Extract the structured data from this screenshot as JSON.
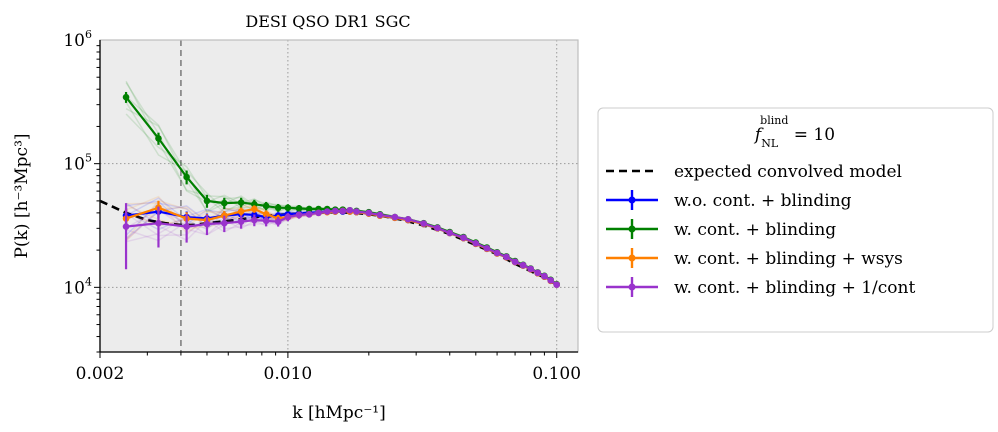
{
  "chart_data": {
    "type": "line",
    "title": "DESI QSO DR1 SGC",
    "xlabel": "k [hMpc⁻¹]",
    "ylabel": "P(k) [h⁻³Mpc³]",
    "xscale": "log",
    "yscale": "log",
    "xlim": [
      0.002,
      0.12
    ],
    "ylim": [
      3000,
      1000000
    ],
    "xticks": [
      0.002,
      0.01,
      0.1
    ],
    "xtick_labels": [
      "0.002",
      "0.010",
      "0.100"
    ],
    "yticks": [
      10000,
      100000,
      1000000
    ],
    "ytick_labels": [
      {
        "base": "10",
        "exp": "4"
      },
      {
        "base": "10",
        "exp": "5"
      },
      {
        "base": "10",
        "exp": "6"
      }
    ],
    "grid": true,
    "vline_x": 0.004,
    "legend": {
      "placement": "outside-right",
      "title_base": "f",
      "title_sub": "NL",
      "title_sup": "blind",
      "title_rhs": " = 10"
    },
    "model": {
      "name": "expected convolved model",
      "color": "#000000",
      "x": [
        0.002,
        0.0025,
        0.003,
        0.0035,
        0.004,
        0.0045,
        0.005,
        0.006,
        0.007,
        0.008,
        0.01,
        0.012,
        0.015,
        0.018,
        0.022,
        0.027,
        0.033,
        0.04,
        0.05,
        0.06,
        0.07,
        0.08,
        0.09,
        0.1
      ],
      "y": [
        50000,
        40000,
        35000,
        33000,
        32000,
        32000,
        33000,
        34500,
        36000,
        37500,
        39000,
        40000,
        40500,
        40000,
        38000,
        35000,
        31000,
        27000,
        22000,
        18500,
        15500,
        13500,
        12000,
        10500
      ]
    },
    "x": [
      0.0025,
      0.0033,
      0.0042,
      0.005,
      0.0058,
      0.0067,
      0.0075,
      0.0083,
      0.0092,
      0.01,
      0.011,
      0.012,
      0.013,
      0.014,
      0.015,
      0.016,
      0.017,
      0.018,
      0.02,
      0.022,
      0.025,
      0.028,
      0.032,
      0.036,
      0.04,
      0.045,
      0.05,
      0.055,
      0.06,
      0.065,
      0.07,
      0.075,
      0.08,
      0.085,
      0.09,
      0.095,
      0.1
    ],
    "series": [
      {
        "name": "w.o. cont. + blinding",
        "color": "#0000ff",
        "y": [
          38000,
          41000,
          37000,
          36000,
          38000,
          39000,
          38500,
          37000,
          38000,
          39000,
          39500,
          40000,
          40500,
          41000,
          41000,
          41000,
          41000,
          40500,
          39500,
          38000,
          36500,
          35000,
          32500,
          30000,
          27500,
          25000,
          22500,
          20500,
          18800,
          17500,
          16000,
          15000,
          14000,
          13000,
          12200,
          11300,
          10500
        ],
        "err": [
          6000,
          5000,
          4000,
          3500,
          3000,
          3000,
          2800,
          2600,
          2500,
          2400,
          2300,
          2200,
          2100,
          2000,
          2000,
          1900,
          1800,
          1700,
          1500,
          1300,
          1200,
          1000,
          900,
          800,
          700,
          650,
          600,
          550,
          500,
          450,
          400,
          380,
          350,
          330,
          300,
          280,
          250
        ]
      },
      {
        "name": "w. cont. + blinding",
        "color": "#008000",
        "y": [
          345000,
          160000,
          78000,
          50000,
          48000,
          48500,
          47000,
          45500,
          44000,
          44000,
          43500,
          43000,
          43000,
          43000,
          42500,
          42500,
          42000,
          41500,
          40500,
          39000,
          37000,
          35500,
          33000,
          30500,
          28000,
          25500,
          23000,
          21000,
          19200,
          17800,
          16300,
          15200,
          14200,
          13200,
          12400,
          11500,
          10600
        ],
        "err": [
          35000,
          18000,
          10000,
          6000,
          5000,
          4500,
          4000,
          3500,
          3200,
          3000,
          2800,
          2600,
          2500,
          2400,
          2300,
          2200,
          2100,
          2000,
          1800,
          1600,
          1400,
          1200,
          1000,
          900,
          800,
          700,
          650,
          600,
          550,
          500,
          450,
          400,
          380,
          350,
          330,
          300,
          280
        ]
      },
      {
        "name": "w. cont. + blinding + wsys",
        "color": "#ff8000",
        "y": [
          36000,
          44000,
          36000,
          35000,
          38000,
          41000,
          43000,
          39000,
          36000,
          37000,
          38500,
          39000,
          40000,
          40500,
          41000,
          41500,
          41000,
          40500,
          39500,
          38000,
          36500,
          35000,
          32500,
          30000,
          27500,
          25000,
          22500,
          20500,
          18800,
          17500,
          16000,
          15000,
          14000,
          13000,
          12200,
          11300,
          10500
        ],
        "err": [
          7000,
          6000,
          4500,
          4000,
          3500,
          3200,
          3000,
          2800,
          2600,
          2500,
          2400,
          2300,
          2200,
          2100,
          2000,
          1900,
          1800,
          1700,
          1500,
          1300,
          1200,
          1000,
          900,
          800,
          700,
          650,
          600,
          550,
          500,
          450,
          400,
          380,
          350,
          330,
          300,
          280,
          250
        ]
      },
      {
        "name": "w. cont. + blinding + 1/cont",
        "color": "#9933cc",
        "y": [
          31000,
          33000,
          31000,
          32500,
          33000,
          34000,
          35000,
          34500,
          34000,
          37000,
          38500,
          39000,
          40000,
          41000,
          41500,
          41500,
          42000,
          41000,
          40000,
          38500,
          37000,
          35500,
          32800,
          30200,
          27600,
          25200,
          22700,
          20700,
          19000,
          17600,
          16100,
          15100,
          14100,
          13100,
          12300,
          11400,
          10500
        ],
        "err": [
          17000,
          12000,
          8000,
          6000,
          5000,
          4200,
          3800,
          3400,
          3000,
          2800,
          2600,
          2400,
          2300,
          2200,
          2100,
          2000,
          1900,
          1800,
          1600,
          1400,
          1200,
          1000,
          900,
          800,
          700,
          650,
          600,
          550,
          500,
          450,
          400,
          380,
          350,
          330,
          300,
          280,
          250
        ]
      }
    ]
  }
}
